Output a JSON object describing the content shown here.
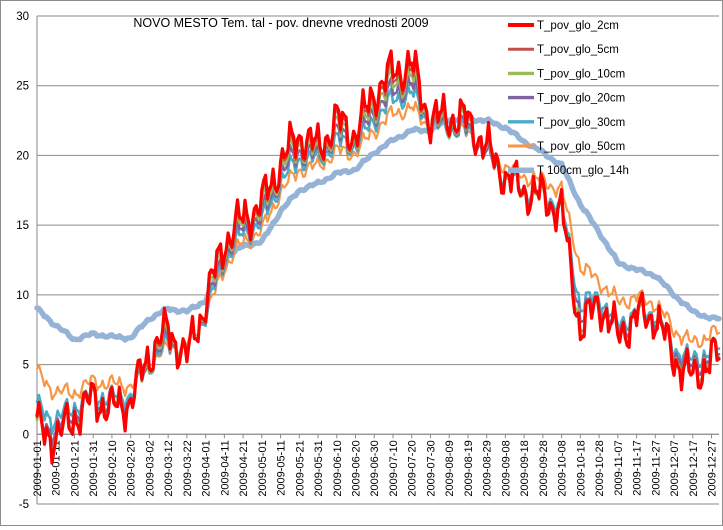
{
  "chart_data": {
    "type": "line",
    "title": "NOVO MESTO Tem. tal - pov. dnevne vrednosti 2009",
    "xlabel": "",
    "ylabel": "",
    "ylim": [
      -5,
      30
    ],
    "yticks": [
      -5,
      0,
      5,
      10,
      15,
      20,
      25,
      30
    ],
    "grid": true,
    "legend_position": "top-right",
    "x_tick_labels": [
      "2009-01-01",
      "2009-01-11",
      "2009-01-21",
      "2009-01-31",
      "2009-02-10",
      "2009-02-20",
      "2009-03-02",
      "2009-03-12",
      "2009-03-22",
      "2009-04-01",
      "2009-04-11",
      "2009-04-21",
      "2009-05-01",
      "2009-05-11",
      "2009-05-21",
      "2009-05-31",
      "2009-06-10",
      "2009-06-20",
      "2009-06-30",
      "2009-07-10",
      "2009-07-20",
      "2009-07-30",
      "2009-08-09",
      "2009-08-19",
      "2009-08-29",
      "2009-09-08",
      "2009-09-18",
      "2009-09-28",
      "2009-10-08",
      "2009-10-18",
      "2009-10-28",
      "2009-11-07",
      "2009-11-17",
      "2009-11-27",
      "2009-12-07",
      "2009-12-17",
      "2009-12-27"
    ],
    "x_start": "2009-01-01",
    "x_end": "2009-12-31",
    "anchor_dates": [
      "2009-01-01",
      "2009-01-11",
      "2009-01-21",
      "2009-01-31",
      "2009-02-10",
      "2009-02-20",
      "2009-03-02",
      "2009-03-12",
      "2009-03-22",
      "2009-04-01",
      "2009-04-11",
      "2009-04-21",
      "2009-05-01",
      "2009-05-11",
      "2009-05-21",
      "2009-05-31",
      "2009-06-10",
      "2009-06-20",
      "2009-06-30",
      "2009-07-10",
      "2009-07-20",
      "2009-07-30",
      "2009-08-09",
      "2009-08-19",
      "2009-08-29",
      "2009-09-08",
      "2009-09-18",
      "2009-09-28",
      "2009-10-08",
      "2009-10-18",
      "2009-10-28",
      "2009-11-07",
      "2009-11-17",
      "2009-11-27",
      "2009-12-07",
      "2009-12-17",
      "2009-12-27",
      "2009-12-31"
    ],
    "series": [
      {
        "name": "T_pov_glo_2cm",
        "color": "#ff0000",
        "width": 3.2,
        "amp": 1.5,
        "values": [
          0.6,
          -0.3,
          1.2,
          2.6,
          1.8,
          2.4,
          5.8,
          7.5,
          5.5,
          9.5,
          13.8,
          15.5,
          16.5,
          19.5,
          21.5,
          20.5,
          22.5,
          21.5,
          24.5,
          26.0,
          26.5,
          22.5,
          22.8,
          22.5,
          20.5,
          18.5,
          17.5,
          17.0,
          16.0,
          7.5,
          9.5,
          7.0,
          8.5,
          8.5,
          5.5,
          4.0,
          5.5,
          5.5
        ]
      },
      {
        "name": "T_pov_glo_5cm",
        "color": "#c0504d",
        "width": 2.2,
        "amp": 1.4,
        "values": [
          0.5,
          -0.2,
          1.2,
          2.5,
          1.8,
          2.3,
          5.6,
          7.3,
          5.5,
          9.4,
          13.6,
          15.4,
          16.3,
          19.3,
          21.2,
          20.3,
          22.2,
          21.3,
          24.1,
          25.6,
          26.1,
          22.4,
          22.6,
          22.3,
          20.4,
          18.4,
          17.4,
          16.9,
          15.9,
          7.6,
          9.4,
          7.0,
          8.4,
          8.4,
          5.5,
          4.1,
          5.5,
          5.5
        ]
      },
      {
        "name": "T_pov_glo_10cm",
        "color": "#9bbb59",
        "width": 2.6,
        "amp": 1.25,
        "values": [
          0.4,
          -0.1,
          1.3,
          2.5,
          1.9,
          2.4,
          5.4,
          7.1,
          5.6,
          9.2,
          13.3,
          15.2,
          16.0,
          19.0,
          20.9,
          20.1,
          21.9,
          21.1,
          23.7,
          25.2,
          25.7,
          22.3,
          22.4,
          22.2,
          20.3,
          18.3,
          17.3,
          16.9,
          15.9,
          7.9,
          9.4,
          7.1,
          8.4,
          8.4,
          5.6,
          4.3,
          5.6,
          5.6
        ]
      },
      {
        "name": "T_pov_glo_20cm",
        "color": "#8064a2",
        "width": 2.6,
        "amp": 1.0,
        "values": [
          0.7,
          0.3,
          1.6,
          2.6,
          2.1,
          2.5,
          5.2,
          6.8,
          5.8,
          8.9,
          12.9,
          14.8,
          15.6,
          18.6,
          20.4,
          19.9,
          21.5,
          20.9,
          23.2,
          24.6,
          25.1,
          22.2,
          22.2,
          21.9,
          20.1,
          18.3,
          17.4,
          17.0,
          16.1,
          8.5,
          9.5,
          7.4,
          8.5,
          8.5,
          5.9,
          4.7,
          5.8,
          5.8
        ]
      },
      {
        "name": "T_pov_glo_30cm",
        "color": "#4bacc6",
        "width": 2.6,
        "amp": 0.85,
        "values": [
          1.9,
          1.0,
          2.0,
          2.9,
          2.6,
          2.8,
          5.0,
          6.5,
          6.0,
          8.6,
          12.6,
          14.4,
          15.2,
          18.1,
          19.8,
          19.7,
          21.0,
          20.7,
          22.6,
          24.0,
          24.5,
          22.1,
          22.0,
          21.7,
          20.1,
          18.5,
          17.6,
          17.2,
          16.4,
          9.2,
          9.9,
          7.8,
          8.8,
          8.7,
          6.2,
          5.2,
          6.1,
          6.2
        ]
      },
      {
        "name": "T_pov_glo_50cm",
        "color": "#f79646",
        "width": 2.2,
        "amp": 0.6,
        "values": [
          4.4,
          3.0,
          3.0,
          3.8,
          3.6,
          3.5,
          5.0,
          6.2,
          6.4,
          8.4,
          12.0,
          13.8,
          14.6,
          17.4,
          19.0,
          19.2,
          20.3,
          20.2,
          21.8,
          23.0,
          23.4,
          22.0,
          22.2,
          21.5,
          20.5,
          19.2,
          18.5,
          18.2,
          17.5,
          12.0,
          11.0,
          9.5,
          9.8,
          9.4,
          7.5,
          6.5,
          7.2,
          7.3
        ]
      },
      {
        "name": "T 100cm_glo_14h",
        "color": "#95b3d7",
        "width": 5.5,
        "amp": 0.12,
        "values": [
          9.0,
          7.8,
          6.8,
          7.2,
          7.0,
          6.9,
          8.3,
          9.0,
          8.8,
          9.6,
          12.6,
          13.5,
          13.8,
          16.0,
          17.5,
          18.0,
          18.7,
          19.0,
          20.2,
          21.1,
          21.8,
          21.8,
          22.6,
          22.6,
          22.5,
          22.0,
          21.0,
          20.2,
          19.3,
          16.5,
          14.5,
          12.3,
          11.8,
          11.4,
          10.0,
          8.8,
          8.3,
          8.3
        ]
      }
    ]
  }
}
